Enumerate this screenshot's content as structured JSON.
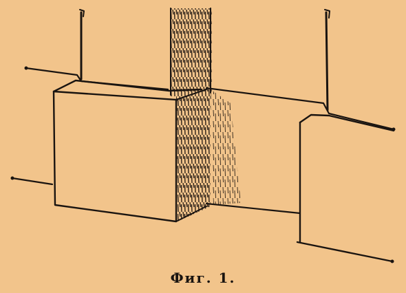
{
  "caption": "Фиг. 1.",
  "colors": {
    "paper": "#f2c48b",
    "ink": "#1a1410",
    "hatch": "#2a2018"
  }
}
